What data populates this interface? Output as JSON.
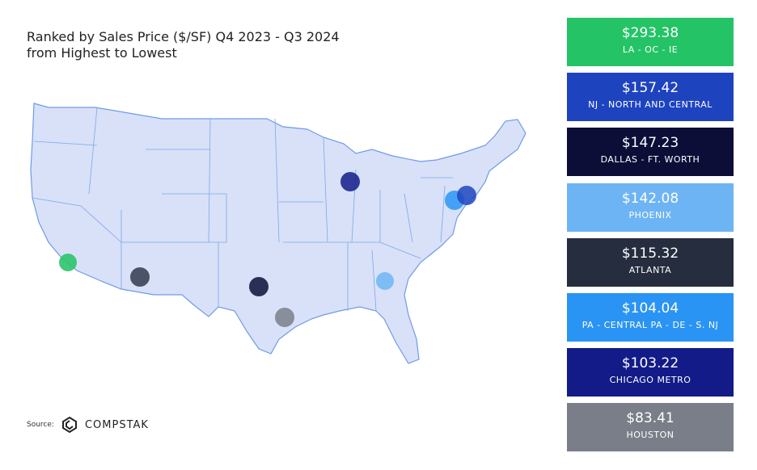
{
  "header": {
    "title": "Ranked by Sales Price ($/SF) Q4 2023 - Q3 2024",
    "subtitle": "from Highest to Lowest"
  },
  "ranking": [
    {
      "price": "$293.38",
      "market": "LA - OC - IE"
    },
    {
      "price": "$157.42",
      "market": "NJ - NORTH AND CENTRAL"
    },
    {
      "price": "$147.23",
      "market": "DALLAS - FT. WORTH"
    },
    {
      "price": "$142.08",
      "market": "PHOENIX"
    },
    {
      "price": "$115.32",
      "market": "ATLANTA"
    },
    {
      "price": "$104.04",
      "market": "PA - CENTRAL PA - DE - S. NJ"
    },
    {
      "price": "$103.22",
      "market": "CHICAGO METRO"
    },
    {
      "price": "$83.41",
      "market": "HOUSTON"
    }
  ],
  "source": {
    "label": "Source:",
    "brand": "COMPSTAK"
  }
}
